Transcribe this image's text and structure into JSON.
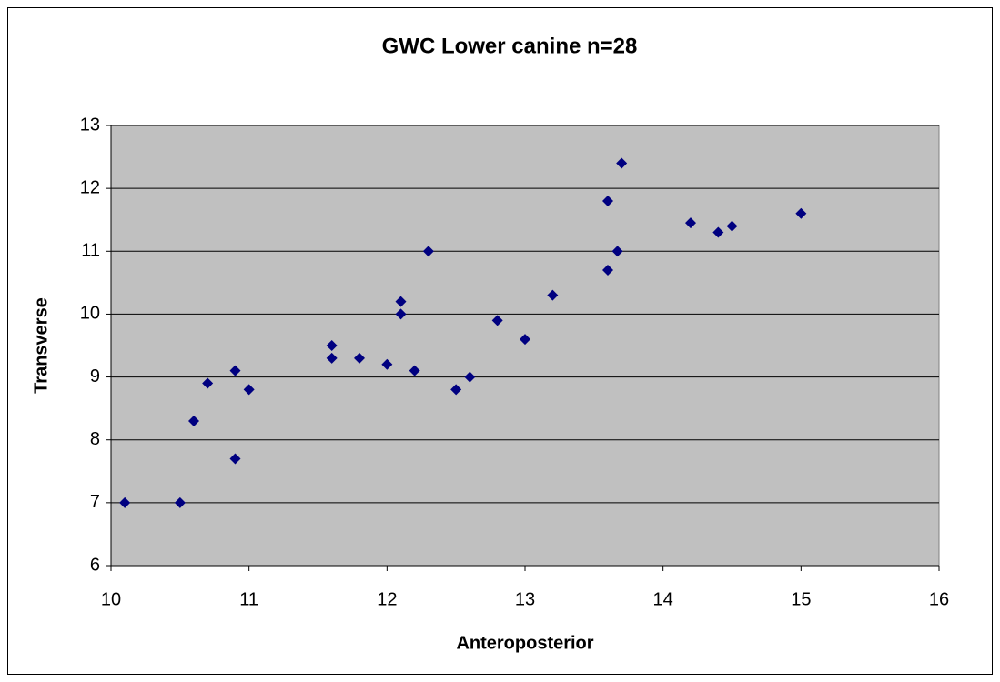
{
  "chart_data": {
    "type": "scatter",
    "title": "GWC Lower canine n=28",
    "xlabel": "Anteroposterior",
    "ylabel": "Transverse",
    "x": [
      10.1,
      10.5,
      10.6,
      10.7,
      10.9,
      10.9,
      11.0,
      11.6,
      11.6,
      11.8,
      12.0,
      12.1,
      12.1,
      12.2,
      12.3,
      12.5,
      12.6,
      12.8,
      13.0,
      13.2,
      13.6,
      13.6,
      13.67,
      13.7,
      14.2,
      14.4,
      14.5,
      15.0
    ],
    "series": [
      {
        "name": "Transverse",
        "color": "#000080",
        "values": [
          7.0,
          7.0,
          8.3,
          8.9,
          9.1,
          7.7,
          8.8,
          9.5,
          9.3,
          9.3,
          9.2,
          10.2,
          10.0,
          9.1,
          11.0,
          8.8,
          9.0,
          9.9,
          9.6,
          10.3,
          11.8,
          10.7,
          11.0,
          12.4,
          11.45,
          11.3,
          11.4,
          11.6
        ]
      }
    ],
    "xlim": [
      10,
      16
    ],
    "xticks": [
      10,
      11,
      12,
      13,
      14,
      15,
      16
    ],
    "ylim": [
      6,
      13
    ],
    "yticks": [
      6,
      7,
      8,
      9,
      10,
      11,
      12,
      13
    ],
    "grid": true,
    "plot_background": "#c0c0c0"
  }
}
